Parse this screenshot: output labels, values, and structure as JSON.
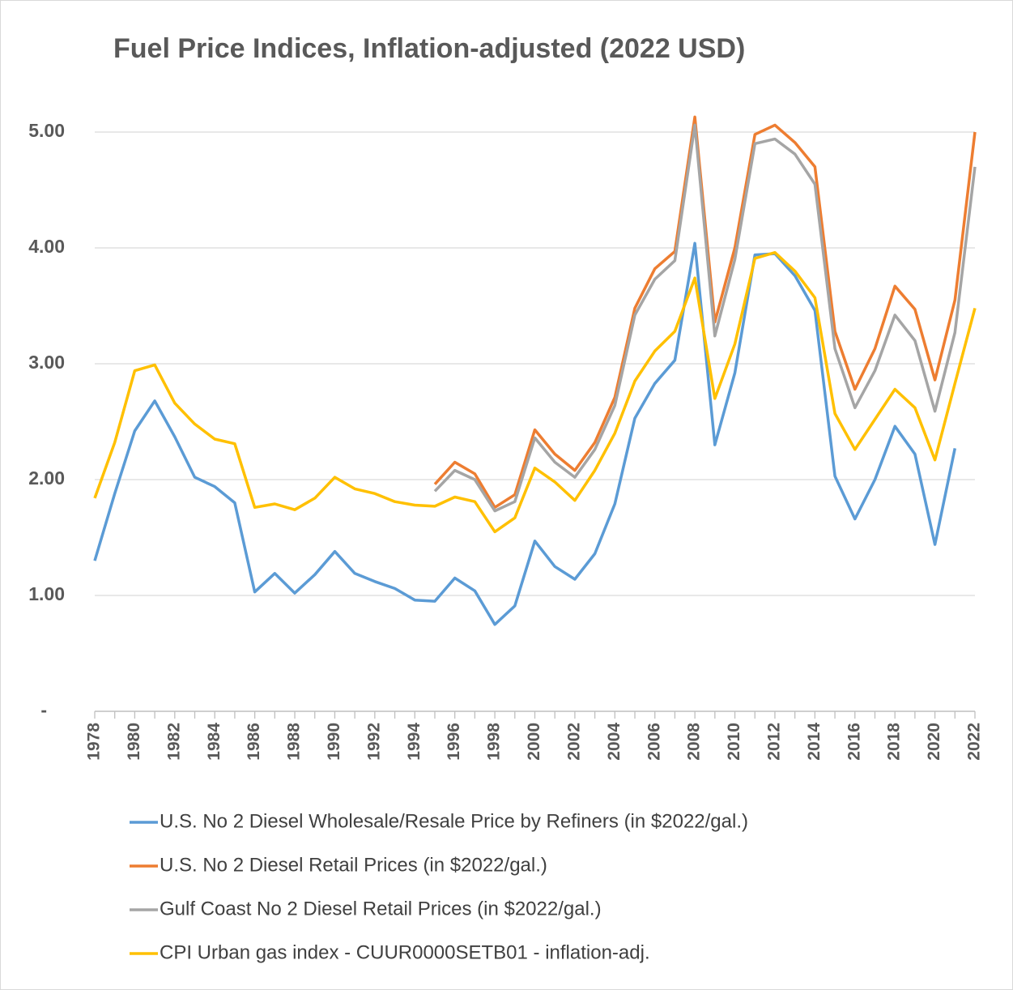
{
  "chart_data": {
    "type": "line",
    "title": "Fuel Price Indices, Inflation-adjusted (2022 USD)",
    "x": [
      1978,
      1979,
      1980,
      1981,
      1982,
      1983,
      1984,
      1985,
      1986,
      1987,
      1988,
      1989,
      1990,
      1991,
      1992,
      1993,
      1994,
      1995,
      1996,
      1997,
      1998,
      1999,
      2000,
      2001,
      2002,
      2003,
      2004,
      2005,
      2006,
      2007,
      2008,
      2009,
      2010,
      2011,
      2012,
      2013,
      2014,
      2015,
      2016,
      2017,
      2018,
      2019,
      2020,
      2021,
      2022
    ],
    "xlim": [
      1978,
      2022
    ],
    "xticks": [
      1978,
      1980,
      1982,
      1984,
      1986,
      1988,
      1990,
      1992,
      1994,
      1996,
      1998,
      2000,
      2002,
      2004,
      2006,
      2008,
      2010,
      2012,
      2014,
      2016,
      2018,
      2020,
      2022
    ],
    "ylim": [
      0,
      5.5
    ],
    "yticks": [
      {
        "value": 0,
        "label": "-"
      },
      {
        "value": 1,
        "label": "1.00"
      },
      {
        "value": 2,
        "label": "2.00"
      },
      {
        "value": 3,
        "label": "3.00"
      },
      {
        "value": 4,
        "label": "4.00"
      },
      {
        "value": 5,
        "label": "5.00"
      }
    ],
    "grid": true,
    "legend": "bottom",
    "series": [
      {
        "name": "U.S. No 2 Diesel Wholesale/Resale Price by Refiners (in $2022/gal.)",
        "color": "#5b9bd5",
        "values": [
          1.3,
          1.88,
          2.42,
          2.68,
          2.37,
          2.02,
          1.94,
          1.8,
          1.03,
          1.19,
          1.02,
          1.18,
          1.38,
          1.19,
          1.12,
          1.06,
          0.96,
          0.95,
          1.15,
          1.04,
          0.75,
          0.91,
          1.47,
          1.25,
          1.14,
          1.36,
          1.79,
          2.53,
          2.83,
          3.03,
          4.04,
          2.3,
          2.92,
          3.94,
          3.95,
          3.76,
          3.46,
          2.03,
          1.66,
          2.0,
          2.46,
          2.22,
          1.44,
          2.27,
          null
        ]
      },
      {
        "name": "U.S. No 2 Diesel Retail Prices (in $2022/gal.)",
        "color": "#ed7d31",
        "values": [
          null,
          null,
          null,
          null,
          null,
          null,
          null,
          null,
          null,
          null,
          null,
          null,
          null,
          null,
          null,
          null,
          null,
          1.96,
          2.15,
          2.05,
          1.76,
          1.87,
          2.43,
          2.22,
          2.08,
          2.32,
          2.71,
          3.48,
          3.82,
          3.97,
          5.13,
          3.36,
          4.0,
          4.98,
          5.06,
          4.91,
          4.7,
          3.28,
          2.78,
          3.13,
          3.67,
          3.47,
          2.86,
          3.55,
          5.0
        ]
      },
      {
        "name": "Gulf Coast No 2 Diesel Retail Prices (in $2022/gal.)",
        "color": "#a5a5a5",
        "values": [
          null,
          null,
          null,
          null,
          null,
          null,
          null,
          null,
          null,
          null,
          null,
          null,
          null,
          null,
          null,
          null,
          null,
          1.9,
          2.08,
          2.0,
          1.73,
          1.81,
          2.36,
          2.15,
          2.02,
          2.26,
          2.64,
          3.42,
          3.73,
          3.89,
          5.06,
          3.24,
          3.9,
          4.9,
          4.94,
          4.81,
          4.55,
          3.13,
          2.62,
          2.94,
          3.42,
          3.2,
          2.59,
          3.27,
          4.7
        ]
      },
      {
        "name": "CPI Urban gas index - CUUR0000SETB01 - inflation-adj.",
        "color": "#ffc000",
        "values": [
          1.84,
          2.32,
          2.94,
          2.99,
          2.66,
          2.48,
          2.35,
          2.31,
          1.76,
          1.79,
          1.74,
          1.84,
          2.02,
          1.92,
          1.88,
          1.81,
          1.78,
          1.77,
          1.85,
          1.81,
          1.55,
          1.67,
          2.1,
          1.98,
          1.82,
          2.08,
          2.4,
          2.85,
          3.11,
          3.28,
          3.74,
          2.7,
          3.17,
          3.91,
          3.96,
          3.8,
          3.57,
          2.57,
          2.26,
          2.52,
          2.78,
          2.62,
          2.17,
          2.83,
          3.48
        ]
      }
    ]
  }
}
